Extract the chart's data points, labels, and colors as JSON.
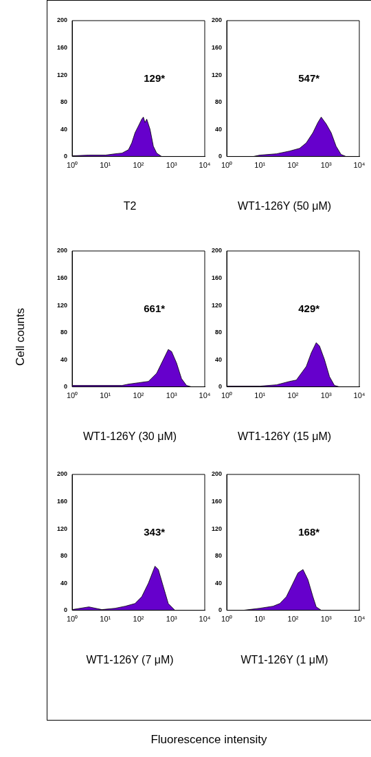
{
  "chart_data": [
    {
      "type": "area",
      "title": "T2",
      "log": "x",
      "xlim": [
        1,
        10000
      ],
      "xticks": [
        {
          "value": 1,
          "label": "10⁰"
        },
        {
          "value": 10,
          "label": "10¹"
        },
        {
          "value": 100,
          "label": "10²"
        },
        {
          "value": 1000,
          "label": "10³"
        },
        {
          "value": 10000,
          "label": "10⁴"
        }
      ],
      "ylim": [
        0,
        200
      ],
      "yticks": [
        0,
        40,
        80,
        120,
        160,
        200
      ],
      "grid": false,
      "legend": false,
      "annotations": [
        "129*"
      ],
      "series": [
        {
          "color": "#6600cc",
          "x": [
            1,
            3.2,
            10,
            20,
            32,
            50,
            63,
            79,
            100,
            126,
            141,
            158,
            178,
            224,
            282,
            355,
            501
          ],
          "values": [
            1,
            2,
            2,
            4,
            5,
            10,
            20,
            35,
            45,
            55,
            58,
            50,
            55,
            40,
            15,
            5,
            0
          ]
        }
      ]
    },
    {
      "type": "area",
      "title": "WT1-126Y (50 μM)",
      "log": "x",
      "xlim": [
        1,
        10000
      ],
      "xticks": [
        {
          "value": 1,
          "label": "10⁰"
        },
        {
          "value": 10,
          "label": "10¹"
        },
        {
          "value": 100,
          "label": "10²"
        },
        {
          "value": 1000,
          "label": "10³"
        },
        {
          "value": 10000,
          "label": "10⁴"
        }
      ],
      "ylim": [
        0,
        200
      ],
      "yticks": [
        0,
        40,
        80,
        120,
        160,
        200
      ],
      "grid": false,
      "legend": false,
      "annotations": [
        "547*"
      ],
      "series": [
        {
          "color": "#6600cc",
          "x": [
            1,
            6.3,
            10,
            32,
            79,
            158,
            251,
            398,
            562,
            708,
            1000,
            1413,
            1995,
            2818,
            3981
          ],
          "values": [
            0,
            0,
            2,
            4,
            8,
            12,
            20,
            35,
            50,
            58,
            48,
            35,
            15,
            3,
            0
          ]
        }
      ]
    },
    {
      "type": "area",
      "title": "WT1-126Y (30 μM)",
      "ylabel": "Cell counts",
      "log": "x",
      "xlim": [
        1,
        10000
      ],
      "xticks": [
        {
          "value": 1,
          "label": "10⁰"
        },
        {
          "value": 10,
          "label": "10¹"
        },
        {
          "value": 100,
          "label": "10²"
        },
        {
          "value": 1000,
          "label": "10³"
        },
        {
          "value": 10000,
          "label": "10⁴"
        }
      ],
      "ylim": [
        0,
        200
      ],
      "yticks": [
        0,
        40,
        80,
        120,
        160,
        200
      ],
      "grid": false,
      "legend": false,
      "annotations": [
        "661*"
      ],
      "series": [
        {
          "color": "#6600cc",
          "x": [
            1,
            32,
            50,
            100,
            200,
            355,
            562,
            794,
            1000,
            1413,
            1995,
            2818,
            3981
          ],
          "values": [
            2,
            2,
            4,
            6,
            8,
            20,
            40,
            55,
            52,
            35,
            12,
            2,
            0
          ]
        }
      ]
    },
    {
      "type": "area",
      "title": "WT1-126Y (15 μM)",
      "log": "x",
      "xlim": [
        1,
        10000
      ],
      "xticks": [
        {
          "value": 1,
          "label": "10⁰"
        },
        {
          "value": 10,
          "label": "10¹"
        },
        {
          "value": 100,
          "label": "10²"
        },
        {
          "value": 1000,
          "label": "10³"
        },
        {
          "value": 10000,
          "label": "10⁴"
        }
      ],
      "ylim": [
        0,
        200
      ],
      "yticks": [
        0,
        40,
        80,
        120,
        160,
        200
      ],
      "grid": false,
      "legend": false,
      "annotations": [
        "429*"
      ],
      "series": [
        {
          "color": "#6600cc",
          "x": [
            1,
            10,
            32,
            79,
            126,
            178,
            251,
            355,
            501,
            631,
            891,
            1259,
            1778,
            2512
          ],
          "values": [
            1,
            1,
            3,
            8,
            10,
            20,
            30,
            50,
            65,
            60,
            40,
            15,
            2,
            0
          ]
        }
      ]
    },
    {
      "type": "area",
      "title": "WT1-126Y (7 μM)",
      "xlabel": "Fluorescence intensity",
      "log": "x",
      "xlim": [
        1,
        10000
      ],
      "xticks": [
        {
          "value": 1,
          "label": "10⁰"
        },
        {
          "value": 10,
          "label": "10¹"
        },
        {
          "value": 100,
          "label": "10²"
        },
        {
          "value": 1000,
          "label": "10³"
        },
        {
          "value": 10000,
          "label": "10⁴"
        }
      ],
      "ylim": [
        0,
        200
      ],
      "yticks": [
        0,
        40,
        80,
        120,
        160,
        200
      ],
      "grid": false,
      "legend": false,
      "annotations": [
        "343*"
      ],
      "series": [
        {
          "color": "#6600cc",
          "x": [
            1,
            3.2,
            7.9,
            20,
            40,
            79,
            126,
            200,
            316,
            398,
            562,
            794,
            1259
          ],
          "values": [
            1,
            5,
            1,
            3,
            6,
            10,
            20,
            40,
            65,
            60,
            35,
            10,
            0
          ]
        }
      ]
    },
    {
      "type": "area",
      "title": "WT1-126Y (1 μM)",
      "log": "x",
      "xlim": [
        1,
        10000
      ],
      "xticks": [
        {
          "value": 1,
          "label": "10⁰"
        },
        {
          "value": 10,
          "label": "10¹"
        },
        {
          "value": 100,
          "label": "10²"
        },
        {
          "value": 1000,
          "label": "10³"
        },
        {
          "value": 10000,
          "label": "10⁴"
        }
      ],
      "ylim": [
        0,
        200
      ],
      "yticks": [
        0,
        40,
        80,
        120,
        160,
        200
      ],
      "grid": false,
      "legend": false,
      "annotations": [
        "168*"
      ],
      "series": [
        {
          "color": "#6600cc",
          "x": [
            1,
            3.2,
            10,
            25,
            40,
            63,
            100,
            141,
            200,
            282,
            398,
            501,
            708
          ],
          "values": [
            0,
            0,
            3,
            6,
            10,
            20,
            40,
            55,
            60,
            45,
            20,
            5,
            0
          ]
        }
      ]
    }
  ]
}
